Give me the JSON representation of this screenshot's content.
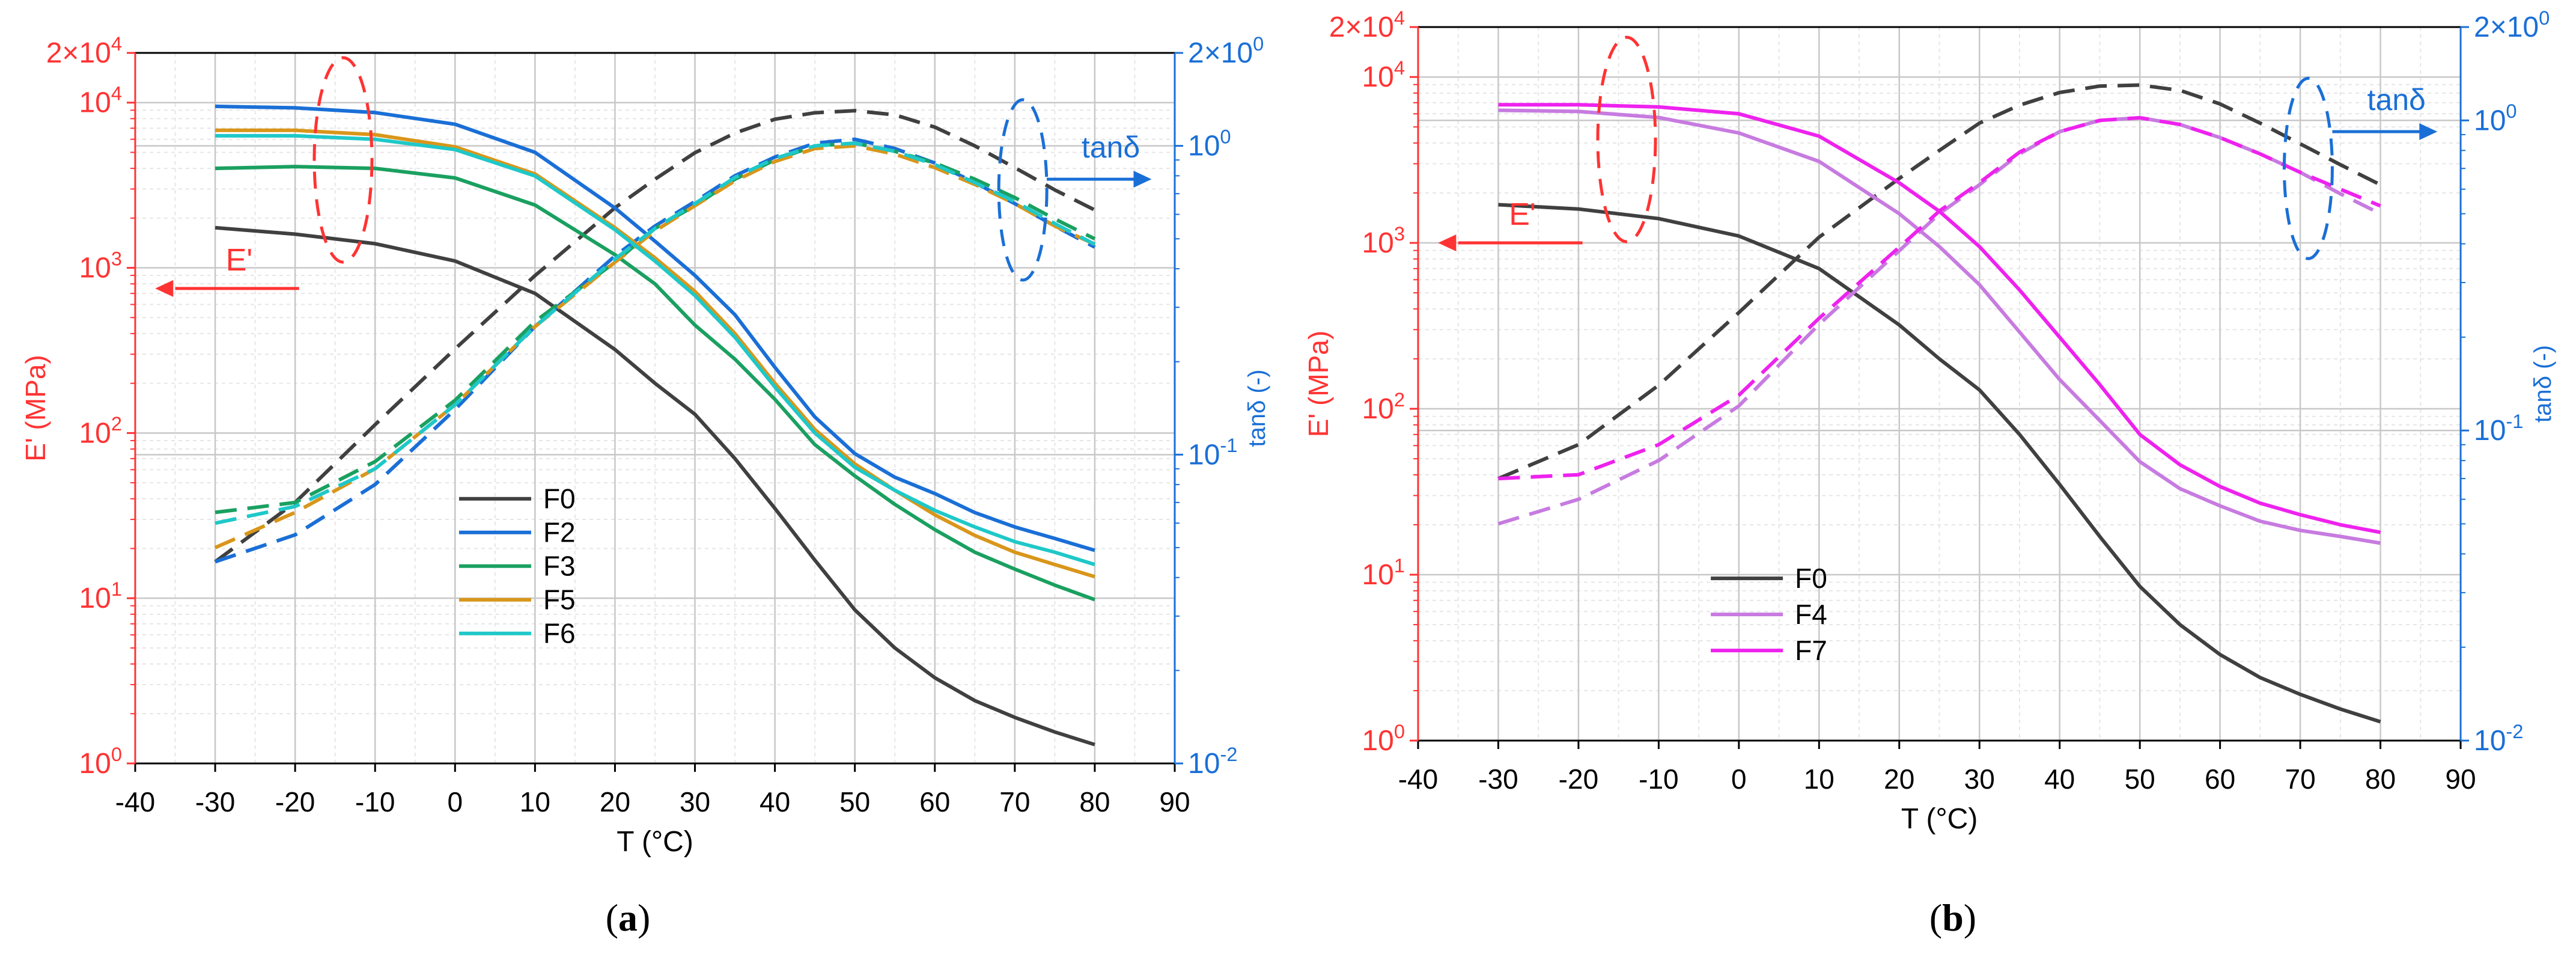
{
  "colors": {
    "left_axis": "#ff3333",
    "right_axis": "#1a6fd6",
    "grid_major": "#c8c8c8",
    "grid_minor": "#e6e6e6",
    "axis_black": "#000000"
  },
  "chart_data": [
    {
      "type": "line",
      "panel_label": "a",
      "caption_open": "(",
      "caption_close": ")",
      "xlabel": "T (°C)",
      "ylabel_left": "E' (MPa)",
      "ylabel_right": "tanδ (-)",
      "xlim": [
        -40,
        90
      ],
      "xticks": [
        -40,
        -30,
        -20,
        -10,
        0,
        10,
        20,
        30,
        40,
        50,
        60,
        70,
        80,
        90
      ],
      "ylim_left": [
        1,
        20000
      ],
      "ylim_right": [
        0.01,
        2
      ],
      "yticks_left": [
        {
          "value": 1,
          "base": "10",
          "exp": "0",
          "mult": ""
        },
        {
          "value": 10,
          "base": "10",
          "exp": "1",
          "mult": ""
        },
        {
          "value": 100,
          "base": "10",
          "exp": "2",
          "mult": ""
        },
        {
          "value": 1000,
          "base": "10",
          "exp": "3",
          "mult": ""
        },
        {
          "value": 10000,
          "base": "10",
          "exp": "4",
          "mult": ""
        },
        {
          "value": 20000,
          "base": "10",
          "exp": "4",
          "mult": "2×"
        }
      ],
      "yticks_right": [
        {
          "value": 0.01,
          "base": "10",
          "exp": "-2",
          "mult": ""
        },
        {
          "value": 0.1,
          "base": "10",
          "exp": "-1",
          "mult": ""
        },
        {
          "value": 1,
          "base": "10",
          "exp": "0",
          "mult": ""
        },
        {
          "value": 2,
          "base": "10",
          "exp": "0",
          "mult": "2×"
        }
      ],
      "annotations": {
        "left_arrow_label": "E'",
        "right_arrow_label": "tanδ"
      },
      "legend": [
        "F0",
        "F2",
        "F3",
        "F5",
        "F6"
      ],
      "series": [
        {
          "name": "F0",
          "color": "#404040",
          "x": [
            -30,
            -20,
            -10,
            0,
            10,
            20,
            25,
            30,
            35,
            40,
            45,
            50,
            55,
            60,
            65,
            70,
            75,
            80
          ],
          "E": [
            1750,
            1600,
            1400,
            1100,
            700,
            320,
            200,
            130,
            70,
            35,
            17,
            8.5,
            5,
            3.3,
            2.4,
            1.9,
            1.55,
            1.3
          ],
          "tan": [
            0.045,
            0.07,
            0.125,
            0.22,
            0.38,
            0.63,
            0.78,
            0.95,
            1.1,
            1.22,
            1.28,
            1.3,
            1.26,
            1.15,
            1.0,
            0.85,
            0.72,
            0.62
          ]
        },
        {
          "name": "F2",
          "color": "#1a6fd6",
          "x": [
            -30,
            -20,
            -10,
            0,
            10,
            20,
            25,
            30,
            35,
            40,
            45,
            50,
            55,
            60,
            65,
            70,
            75,
            80
          ],
          "E": [
            9500,
            9300,
            8700,
            7400,
            5000,
            2300,
            1450,
            900,
            520,
            250,
            125,
            75,
            54,
            43,
            33,
            27,
            23,
            19.5
          ],
          "tan": [
            0.045,
            0.055,
            0.08,
            0.14,
            0.26,
            0.44,
            0.55,
            0.66,
            0.8,
            0.92,
            1.02,
            1.05,
            0.98,
            0.88,
            0.76,
            0.65,
            0.55,
            0.47
          ]
        },
        {
          "name": "F3",
          "color": "#1aa060",
          "x": [
            -30,
            -20,
            -10,
            0,
            10,
            20,
            25,
            30,
            35,
            40,
            45,
            50,
            55,
            60,
            65,
            70,
            75,
            80
          ],
          "E": [
            4000,
            4100,
            4000,
            3500,
            2400,
            1200,
            800,
            450,
            280,
            160,
            85,
            55,
            37,
            26,
            19,
            15,
            12,
            9.8
          ],
          "tan": [
            0.065,
            0.07,
            0.095,
            0.15,
            0.27,
            0.42,
            0.54,
            0.64,
            0.78,
            0.9,
            1.0,
            1.02,
            0.96,
            0.88,
            0.78,
            0.68,
            0.58,
            0.5
          ]
        },
        {
          "name": "F5",
          "color": "#d9961a",
          "x": [
            -30,
            -20,
            -10,
            0,
            10,
            20,
            25,
            30,
            35,
            40,
            45,
            50,
            55,
            60,
            65,
            70,
            75,
            80
          ],
          "E": [
            6800,
            6800,
            6400,
            5400,
            3700,
            1750,
            1150,
            720,
            400,
            200,
            105,
            65,
            45,
            32,
            24,
            19,
            16,
            13.5
          ],
          "tan": [
            0.05,
            0.065,
            0.09,
            0.145,
            0.26,
            0.42,
            0.53,
            0.64,
            0.77,
            0.89,
            0.98,
            1.0,
            0.94,
            0.85,
            0.75,
            0.65,
            0.55,
            0.48
          ]
        },
        {
          "name": "F6",
          "color": "#1fc8c8",
          "x": [
            -30,
            -20,
            -10,
            0,
            10,
            20,
            25,
            30,
            35,
            40,
            45,
            50,
            55,
            60,
            65,
            70,
            75,
            80
          ],
          "E": [
            6300,
            6300,
            6000,
            5200,
            3600,
            1700,
            1100,
            680,
            380,
            190,
            100,
            62,
            45,
            34,
            27,
            22,
            19,
            16
          ],
          "tan": [
            0.06,
            0.068,
            0.09,
            0.145,
            0.26,
            0.43,
            0.54,
            0.65,
            0.79,
            0.91,
            1.0,
            1.02,
            0.96,
            0.87,
            0.76,
            0.66,
            0.56,
            0.48
          ]
        }
      ]
    },
    {
      "type": "line",
      "panel_label": "b",
      "caption_open": "(",
      "caption_close": ")",
      "xlabel": "T (°C)",
      "ylabel_left": "E' (MPa)",
      "ylabel_right": "tanδ (-)",
      "xlim": [
        -40,
        90
      ],
      "xticks": [
        -40,
        -30,
        -20,
        -10,
        0,
        10,
        20,
        30,
        40,
        50,
        60,
        70,
        80,
        90
      ],
      "ylim_left": [
        1,
        20000
      ],
      "ylim_right": [
        0.01,
        2
      ],
      "yticks_left": [
        {
          "value": 1,
          "base": "10",
          "exp": "0",
          "mult": ""
        },
        {
          "value": 10,
          "base": "10",
          "exp": "1",
          "mult": ""
        },
        {
          "value": 100,
          "base": "10",
          "exp": "2",
          "mult": ""
        },
        {
          "value": 1000,
          "base": "10",
          "exp": "3",
          "mult": ""
        },
        {
          "value": 10000,
          "base": "10",
          "exp": "4",
          "mult": ""
        },
        {
          "value": 20000,
          "base": "10",
          "exp": "4",
          "mult": "2×"
        }
      ],
      "yticks_right": [
        {
          "value": 0.01,
          "base": "10",
          "exp": "-2",
          "mult": ""
        },
        {
          "value": 0.1,
          "base": "10",
          "exp": "-1",
          "mult": ""
        },
        {
          "value": 1,
          "base": "10",
          "exp": "0",
          "mult": ""
        },
        {
          "value": 2,
          "base": "10",
          "exp": "0",
          "mult": "2×"
        }
      ],
      "annotations": {
        "left_arrow_label": "E'",
        "right_arrow_label": "tanδ"
      },
      "legend": [
        "F0",
        "F4",
        "F7"
      ],
      "series": [
        {
          "name": "F0",
          "color": "#404040",
          "x": [
            -30,
            -20,
            -10,
            0,
            10,
            20,
            25,
            30,
            35,
            40,
            45,
            50,
            55,
            60,
            65,
            70,
            75,
            80
          ],
          "E": [
            1700,
            1600,
            1400,
            1100,
            700,
            320,
            200,
            130,
            70,
            35,
            17,
            8.5,
            5,
            3.3,
            2.4,
            1.9,
            1.55,
            1.3
          ],
          "tan": [
            0.07,
            0.09,
            0.14,
            0.24,
            0.42,
            0.65,
            0.8,
            0.98,
            1.12,
            1.23,
            1.29,
            1.3,
            1.25,
            1.13,
            0.98,
            0.84,
            0.72,
            0.62
          ]
        },
        {
          "name": "F4",
          "color": "#c77be0",
          "x": [
            -30,
            -20,
            -10,
            0,
            10,
            20,
            25,
            30,
            35,
            40,
            45,
            50,
            55,
            60,
            65,
            70,
            75,
            80
          ],
          "E": [
            6300,
            6200,
            5700,
            4600,
            3100,
            1500,
            950,
            560,
            290,
            150,
            85,
            48,
            33,
            26,
            21,
            18.5,
            17,
            15.5
          ],
          "tan": [
            0.05,
            0.06,
            0.08,
            0.12,
            0.22,
            0.38,
            0.5,
            0.62,
            0.78,
            0.92,
            1.0,
            1.02,
            0.97,
            0.88,
            0.78,
            0.68,
            0.58,
            0.5
          ]
        },
        {
          "name": "F7",
          "color": "#ee22ee",
          "x": [
            -30,
            -20,
            -10,
            0,
            10,
            20,
            25,
            30,
            35,
            40,
            45,
            50,
            55,
            60,
            65,
            70,
            75,
            80
          ],
          "E": [
            6800,
            6800,
            6600,
            6000,
            4400,
            2300,
            1550,
            950,
            520,
            270,
            140,
            70,
            46,
            34,
            27,
            23,
            20,
            18
          ],
          "tan": [
            0.07,
            0.072,
            0.09,
            0.13,
            0.23,
            0.39,
            0.51,
            0.63,
            0.79,
            0.92,
            1.0,
            1.02,
            0.97,
            0.88,
            0.78,
            0.68,
            0.6,
            0.53
          ]
        }
      ]
    }
  ]
}
